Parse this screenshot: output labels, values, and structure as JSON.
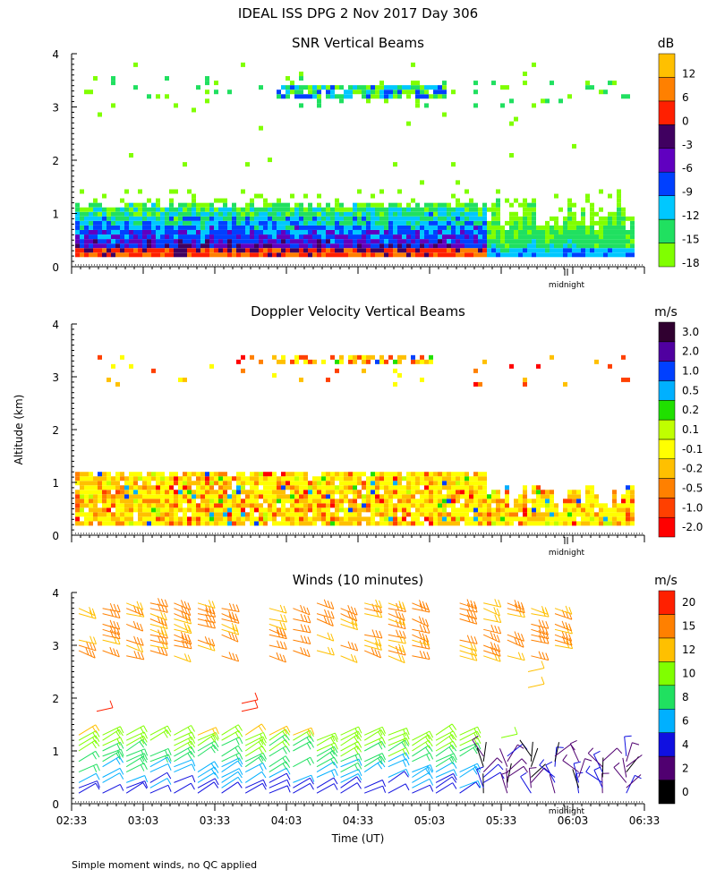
{
  "title": "IDEAL ISS DPG    2 Nov 2017 Day 306",
  "y_axis_label": "Altitude (km)",
  "x_axis_label": "Time (UT)",
  "footnote": "Simple moment winds, no QC applied",
  "midnight_label": "midnight",
  "chart_data": [
    {
      "type": "heatmap",
      "title": "SNR Vertical Beams",
      "unit": "dB",
      "y_ticks": [
        0,
        1,
        2,
        3,
        4
      ],
      "ylim": [
        0,
        4
      ],
      "colorbar": {
        "colors": [
          "#80ff00",
          "#20e060",
          "#00c8ff",
          "#0040ff",
          "#6000c0",
          "#400060",
          "#ff2000",
          "#ff8000",
          "#ffc000"
        ],
        "labels": [
          "-18",
          "-15",
          "-12",
          "-9",
          "-6",
          "-3",
          "0",
          "6",
          "12"
        ]
      },
      "description": "Strong SNR near surface (0.2-1.2 km) decreasing after 05:20 UT; thin layer near 3.3 km"
    },
    {
      "type": "heatmap",
      "title": "Doppler Velocity Vertical Beams",
      "unit": "m/s",
      "y_ticks": [
        0,
        1,
        2,
        3,
        4
      ],
      "ylim": [
        0,
        4
      ],
      "colorbar": {
        "colors": [
          "#ff0000",
          "#ff4000",
          "#ff8000",
          "#ffc000",
          "#ffff00",
          "#c0ff00",
          "#20e000",
          "#00b0ff",
          "#0040ff",
          "#5000a0",
          "#300030"
        ],
        "labels": [
          "-2.0",
          "-1.0",
          "-0.5",
          "-0.2",
          "-0.1",
          "0.1",
          "0.2",
          "0.5",
          "1.0",
          "2.0",
          "3.0"
        ]
      }
    },
    {
      "type": "wind_barbs",
      "title": "Winds (10 minutes)",
      "unit": "m/s",
      "y_ticks": [
        0,
        1,
        2,
        3,
        4
      ],
      "ylim": [
        0,
        4
      ],
      "x_ticks": [
        "02:33",
        "03:03",
        "03:33",
        "04:03",
        "04:33",
        "05:03",
        "05:33",
        "06:03",
        "06:33"
      ],
      "colorbar": {
        "colors": [
          "#000000",
          "#500070",
          "#1010e0",
          "#00b0ff",
          "#20e060",
          "#80ff00",
          "#ffc000",
          "#ff8000",
          "#ff2000"
        ],
        "labels": [
          "0",
          "2",
          "4",
          "6",
          "8",
          "10",
          "12",
          "15",
          "20"
        ]
      }
    }
  ]
}
